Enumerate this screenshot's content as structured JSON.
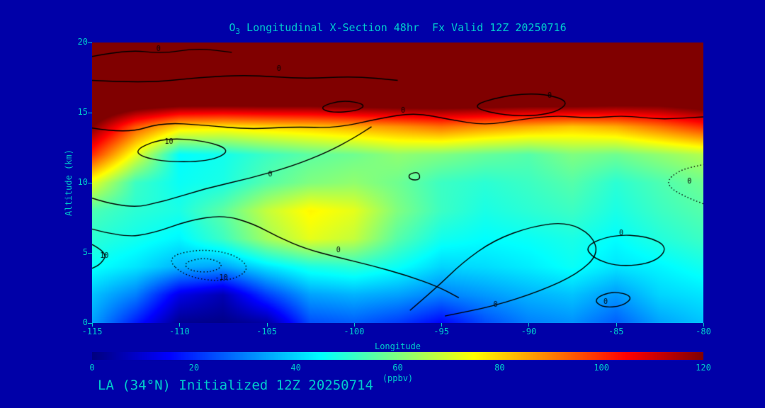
{
  "page": {
    "background": "#0000A8",
    "text_color": "#00CCCC"
  },
  "title": {
    "prefix": "O",
    "sub": "3",
    "rest": " Longitudinal X-Section 48hr  Fx Valid 12Z 20250716"
  },
  "footer": {
    "text": "LA (34°N) Initialized 12Z 20250714"
  },
  "axes": {
    "x_label": "Longitude",
    "y_label": "Altitude (km)",
    "x_ticks": [
      -115,
      -110,
      -105,
      -100,
      -95,
      -90,
      -85,
      -80
    ],
    "y_ticks": [
      0,
      5,
      10,
      15,
      20
    ],
    "x_range": [
      -115,
      -80
    ],
    "y_range": [
      0,
      20
    ]
  },
  "colorbar": {
    "label": "(ppbv)",
    "ticks": [
      0,
      20,
      40,
      60,
      80,
      100,
      120
    ],
    "min": 0,
    "max": 120
  },
  "chart_data": {
    "type": "heatmap",
    "title": "O3 Longitudinal X-Section 48hr Fx Valid 12Z 20250716",
    "xlabel": "Longitude",
    "ylabel": "Altitude (km)",
    "units": "ppbv",
    "colormap": "jet",
    "zlim": [
      0,
      120
    ],
    "x": [
      -115,
      -112.5,
      -110,
      -107.5,
      -105,
      -102.5,
      -100,
      -97.5,
      -95,
      -92.5,
      -90,
      -87.5,
      -85,
      -82.5,
      -80
    ],
    "y": [
      0,
      2,
      4,
      6,
      8,
      10,
      12,
      14,
      16,
      18,
      20
    ],
    "values": [
      [
        34,
        18,
        2,
        1,
        4,
        24,
        26,
        22,
        15,
        24,
        30,
        32,
        26,
        34,
        38
      ],
      [
        38,
        30,
        12,
        6,
        22,
        34,
        36,
        34,
        30,
        33,
        36,
        38,
        33,
        40,
        42
      ],
      [
        46,
        42,
        36,
        34,
        42,
        48,
        50,
        46,
        40,
        41,
        43,
        46,
        42,
        44,
        47
      ],
      [
        50,
        47,
        44,
        52,
        64,
        72,
        68,
        55,
        47,
        45,
        46,
        48,
        45,
        49,
        52
      ],
      [
        54,
        50,
        48,
        56,
        68,
        76,
        72,
        60,
        52,
        48,
        50,
        52,
        48,
        52,
        55
      ],
      [
        72,
        52,
        46,
        48,
        55,
        60,
        62,
        58,
        52,
        50,
        52,
        55,
        50,
        54,
        58
      ],
      [
        100,
        72,
        45,
        47,
        52,
        56,
        58,
        62,
        60,
        57,
        55,
        60,
        58,
        62,
        66
      ],
      [
        120,
        95,
        80,
        78,
        80,
        82,
        85,
        88,
        92,
        88,
        85,
        82,
        85,
        92,
        100
      ],
      [
        138,
        136,
        135,
        135,
        135,
        134,
        135,
        136,
        135,
        135,
        134,
        135,
        132,
        130,
        133
      ],
      [
        140,
        139,
        138,
        138,
        139,
        138,
        138,
        139,
        138,
        138,
        138,
        137,
        136,
        135,
        136
      ],
      [
        140,
        140,
        139,
        139,
        140,
        139,
        139,
        140,
        139,
        139,
        139,
        138,
        137,
        136,
        137
      ]
    ],
    "contours": [
      {
        "label": "0",
        "style": "solid",
        "closed": false,
        "label_at": [
          -97.2,
          15.15
        ],
        "points": [
          [
            -115,
            13.9
          ],
          [
            -113,
            13.5
          ],
          [
            -111,
            14.3
          ],
          [
            -108.5,
            14.1
          ],
          [
            -106,
            13.8
          ],
          [
            -103.5,
            14.0
          ],
          [
            -101,
            13.9
          ],
          [
            -98.5,
            14.6
          ],
          [
            -96.5,
            15.0
          ],
          [
            -94.5,
            14.5
          ],
          [
            -92.5,
            14.1
          ],
          [
            -90.5,
            14.5
          ],
          [
            -88.5,
            14.8
          ],
          [
            -86.5,
            14.6
          ],
          [
            -84.5,
            14.8
          ],
          [
            -82.5,
            14.5
          ],
          [
            -80,
            14.7
          ]
        ]
      },
      {
        "label": "0",
        "style": "solid",
        "closed": false,
        "label_at": [
          -104.3,
          18.1
        ],
        "points": [
          [
            -115,
            17.3
          ],
          [
            -112,
            17.1
          ],
          [
            -109,
            17.5
          ],
          [
            -106,
            17.7
          ],
          [
            -103,
            17.4
          ],
          [
            -100,
            17.6
          ],
          [
            -97.5,
            17.3
          ]
        ]
      },
      {
        "label": "0",
        "style": "solid",
        "closed": false,
        "label_at": [
          -111.2,
          19.5
        ],
        "points": [
          [
            -115,
            19.0
          ],
          [
            -113,
            19.5
          ],
          [
            -111,
            19.2
          ],
          [
            -109,
            19.6
          ],
          [
            -107,
            19.3
          ]
        ]
      },
      {
        "label": "",
        "style": "solid",
        "closed": true,
        "label_at": null,
        "points": [
          [
            -102,
            15.4
          ],
          [
            -100.7,
            15.9
          ],
          [
            -99.3,
            15.6
          ],
          [
            -99.8,
            15.1
          ],
          [
            -101.4,
            15.0
          ]
        ]
      },
      {
        "label": "0",
        "style": "solid",
        "closed": true,
        "label_at": [
          -88.8,
          16.2
        ],
        "points": [
          [
            -93.5,
            15.4
          ],
          [
            -91.5,
            16.2
          ],
          [
            -89.3,
            16.4
          ],
          [
            -87.6,
            15.8
          ],
          [
            -88.6,
            14.9
          ],
          [
            -91.0,
            14.7
          ]
        ]
      },
      {
        "label": "10",
        "style": "solid",
        "closed": true,
        "label_at": [
          -110.6,
          12.9
        ],
        "points": [
          [
            -112.8,
            12.2
          ],
          [
            -111,
            13.2
          ],
          [
            -108.5,
            13.0
          ],
          [
            -107,
            12.3
          ],
          [
            -108.3,
            11.5
          ],
          [
            -111.2,
            11.5
          ]
        ]
      },
      {
        "label": "0",
        "style": "solid",
        "closed": false,
        "label_at": [
          -104.8,
          10.6
        ],
        "points": [
          [
            -115,
            8.9
          ],
          [
            -113,
            8.1
          ],
          [
            -110.8,
            8.7
          ],
          [
            -108.5,
            9.6
          ],
          [
            -106,
            10.3
          ],
          [
            -103.5,
            11.2
          ],
          [
            -101.5,
            12.2
          ],
          [
            -100,
            13.2
          ],
          [
            -99,
            14.0
          ]
        ]
      },
      {
        "label": "0",
        "style": "solid",
        "closed": false,
        "label_at": [
          -100.9,
          5.2
        ],
        "points": [
          [
            -115,
            6.7
          ],
          [
            -113.2,
            6.1
          ],
          [
            -111.5,
            6.4
          ],
          [
            -109.5,
            7.3
          ],
          [
            -107.5,
            7.7
          ],
          [
            -105.8,
            7.1
          ],
          [
            -104.3,
            6.1
          ],
          [
            -102.8,
            5.3
          ],
          [
            -101,
            4.7
          ],
          [
            -99,
            4.1
          ],
          [
            -97,
            3.4
          ],
          [
            -95.2,
            2.6
          ],
          [
            -94,
            1.8
          ]
        ]
      },
      {
        "label": "0",
        "style": "solid",
        "closed": false,
        "label_at": [
          -91.9,
          1.3
        ],
        "points": [
          [
            -96.8,
            0.9
          ],
          [
            -95.3,
            2.5
          ],
          [
            -93.8,
            4.3
          ],
          [
            -92,
            5.9
          ],
          [
            -89.8,
            6.9
          ],
          [
            -87.8,
            7.2
          ],
          [
            -86.4,
            6.3
          ],
          [
            -86,
            4.9
          ],
          [
            -87.2,
            3.5
          ],
          [
            -89.3,
            2.3
          ],
          [
            -92,
            1.2
          ],
          [
            -94.8,
            0.5
          ]
        ]
      },
      {
        "label": "0",
        "style": "solid",
        "closed": true,
        "label_at": [
          -84.7,
          6.4
        ],
        "points": [
          [
            -86.8,
            5.5
          ],
          [
            -85.2,
            6.3
          ],
          [
            -83.2,
            6.2
          ],
          [
            -82,
            5.4
          ],
          [
            -82.8,
            4.3
          ],
          [
            -84.8,
            4.0
          ],
          [
            -86.3,
            4.6
          ]
        ]
      },
      {
        "label": "-10",
        "style": "dotted",
        "closed": true,
        "label_at": [
          -107.6,
          3.2
        ],
        "points": [
          [
            -110.8,
            4.7
          ],
          [
            -108.8,
            5.3
          ],
          [
            -106.8,
            4.9
          ],
          [
            -105.9,
            3.8
          ],
          [
            -107.3,
            2.9
          ],
          [
            -109.7,
            3.3
          ]
        ]
      },
      {
        "label": "",
        "style": "dotted",
        "closed": true,
        "label_at": null,
        "points": [
          [
            -109.8,
            4.3
          ],
          [
            -108.5,
            4.7
          ],
          [
            -107.4,
            4.2
          ],
          [
            -108.1,
            3.6
          ],
          [
            -109.4,
            3.7
          ]
        ]
      },
      {
        "label": "10",
        "style": "solid",
        "closed": false,
        "label_at": [
          -114.3,
          4.8
        ],
        "points": [
          [
            -115,
            5.6
          ],
          [
            -114.1,
            5.0
          ],
          [
            -114.5,
            4.2
          ],
          [
            -115,
            3.9
          ]
        ]
      },
      {
        "label": "0",
        "style": "dotted",
        "closed": false,
        "label_at": [
          -80.8,
          10.1
        ],
        "points": [
          [
            -80,
            8.5
          ],
          [
            -81.3,
            9.1
          ],
          [
            -82.2,
            10.0
          ],
          [
            -81.4,
            10.9
          ],
          [
            -80,
            11.3
          ]
        ]
      },
      {
        "label": "0",
        "style": "solid",
        "closed": true,
        "label_at": [
          -85.6,
          1.5
        ],
        "points": [
          [
            -86.3,
            1.7
          ],
          [
            -85.2,
            2.3
          ],
          [
            -84,
            1.9
          ],
          [
            -84.6,
            1.2
          ],
          [
            -85.8,
            1.1
          ]
        ]
      },
      {
        "label": "",
        "style": "solid",
        "closed": true,
        "label_at": null,
        "points": [
          [
            -96.9,
            10.6
          ],
          [
            -96.3,
            10.8
          ],
          [
            -96.2,
            10.2
          ],
          [
            -96.8,
            10.2
          ]
        ]
      }
    ]
  }
}
